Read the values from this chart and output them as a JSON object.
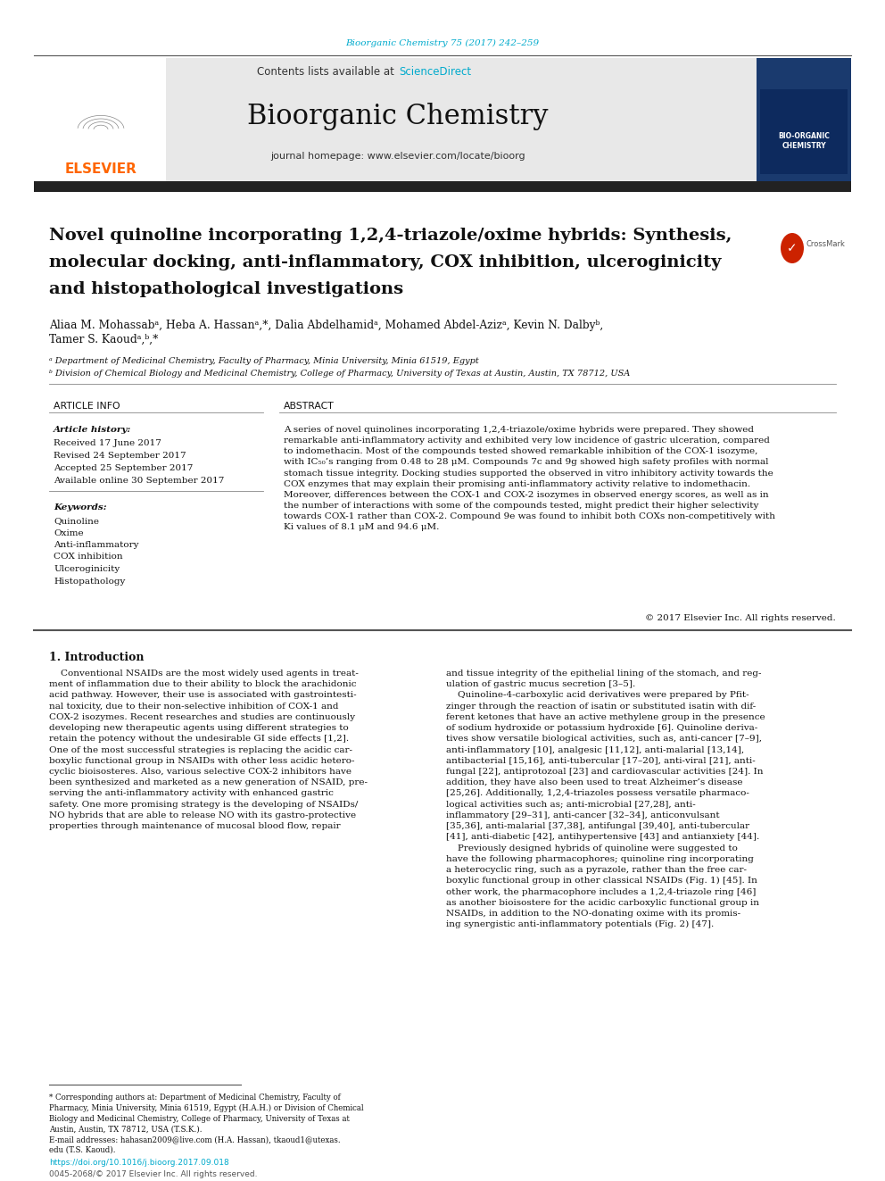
{
  "bg_color": "#ffffff",
  "journal_ref": "Bioorganic Chemistry 75 (2017) 242–259",
  "journal_ref_color": "#00aacc",
  "header_bg": "#e8e8e8",
  "header_text": "Contents lists available at",
  "sciencedirect_text": "ScienceDirect",
  "sciencedirect_color": "#00aacc",
  "journal_name": "Bioorganic Chemistry",
  "journal_homepage": "journal homepage: www.elsevier.com/locate/bioorg",
  "elsevier_color": "#ff6600",
  "elsevier_text": "ELSEVIER",
  "dark_bar_color": "#222222",
  "article_title_line1": "Novel quinoline incorporating 1,2,4-triazole/oxime hybrids: Synthesis,",
  "article_title_line2": "molecular docking, anti-inflammatory, COX inhibition, ulceroginicity",
  "article_title_line3": "and histopathological investigations",
  "authors_line1": "Aliaa M. Mohassabᵃ, Heba A. Hassanᵃ,*, Dalia Abdelhamidᵃ, Mohamed Abdel-Azizᵃ, Kevin N. Dalbyᵇ,",
  "authors_line2": "Tamer S. Kaoudᵃ,ᵇ,*",
  "affil_a": "ᵃ Department of Medicinal Chemistry, Faculty of Pharmacy, Minia University, Minia 61519, Egypt",
  "affil_b": "ᵇ Division of Chemical Biology and Medicinal Chemistry, College of Pharmacy, University of Texas at Austin, Austin, TX 78712, USA",
  "article_info_title": "ARTICLE INFO",
  "abstract_title": "ABSTRACT",
  "article_history_label": "Article history:",
  "received": "Received 17 June 2017",
  "revised": "Revised 24 September 2017",
  "accepted": "Accepted 25 September 2017",
  "available": "Available online 30 September 2017",
  "keywords_label": "Keywords:",
  "keywords": [
    "Quinoline",
    "Oxime",
    "Anti-inflammatory",
    "COX inhibition",
    "Ulceroginicity",
    "Histopathology"
  ],
  "abstract_text": "A series of novel quinolines incorporating 1,2,4-triazole/oxime hybrids were prepared. They showed\nremarkable anti-inflammatory activity and exhibited very low incidence of gastric ulceration, compared\nto indomethacin. Most of the compounds tested showed remarkable inhibition of the COX-1 isozyme,\nwith IC₅₀’s ranging from 0.48 to 28 μM. Compounds 7c and 9g showed high safety profiles with normal\nstomach tissue integrity. Docking studies supported the observed in vitro inhibitory activity towards the\nCOX enzymes that may explain their promising anti-inflammatory activity relative to indomethacin.\nMoreover, differences between the COX-1 and COX-2 isozymes in observed energy scores, as well as in\nthe number of interactions with some of the compounds tested, might predict their higher selectivity\ntowards COX-1 rather than COX-2. Compound 9e was found to inhibit both COXs non-competitively with\nKi values of 8.1 μM and 94.6 μM.",
  "copyright": "© 2017 Elsevier Inc. All rights reserved.",
  "intro_title": "1. Introduction",
  "intro_col1": "    Conventional NSAIDs are the most widely used agents in treat-\nment of inflammation due to their ability to block the arachidonic\nacid pathway. However, their use is associated with gastrointesti-\nnal toxicity, due to their non-selective inhibition of COX-1 and\nCOX-2 isozymes. Recent researches and studies are continuously\ndeveloping new therapeutic agents using different strategies to\nretain the potency without the undesirable GI side effects [1,2].\nOne of the most successful strategies is replacing the acidic car-\nboxylic functional group in NSAIDs with other less acidic hetero-\ncyclic bioisosteres. Also, various selective COX-2 inhibitors have\nbeen synthesized and marketed as a new generation of NSAID, pre-\nserving the anti-inflammatory activity with enhanced gastric\nsafety. One more promising strategy is the developing of NSAIDs/\nNO hybrids that are able to release NO with its gastro-protective\nproperties through maintenance of mucosal blood flow, repair",
  "intro_col2": "and tissue integrity of the epithelial lining of the stomach, and reg-\nulation of gastric mucus secretion [3–5].\n    Quinoline-4-carboxylic acid derivatives were prepared by Pfit-\nzinger through the reaction of isatin or substituted isatin with dif-\nferent ketones that have an active methylene group in the presence\nof sodium hydroxide or potassium hydroxide [6]. Quinoline deriva-\ntives show versatile biological activities, such as, anti-cancer [7–9],\nanti-inflammatory [10], analgesic [11,12], anti-malarial [13,14],\nantibacterial [15,16], anti-tubercular [17–20], anti-viral [21], anti-\nfungal [22], antiprotozoal [23] and cardiovascular activities [24]. In\naddition, they have also been used to treat Alzheimer’s disease\n[25,26]. Additionally, 1,2,4-triazoles possess versatile pharmaco-\nlogical activities such as; anti-microbial [27,28], anti-\ninflammatory [29–31], anti-cancer [32–34], anticonvulsant\n[35,36], anti-malarial [37,38], antifungal [39,40], anti-tubercular\n[41], anti-diabetic [42], antihypertensive [43] and antianxiety [44].\n    Previously designed hybrids of quinoline were suggested to\nhave the following pharmacophores; quinoline ring incorporating\na heterocyclic ring, such as a pyrazole, rather than the free car-\nboxylic functional group in other classical NSAIDs (Fig. 1) [45]. In\nother work, the pharmacophore includes a 1,2,4-triazole ring [46]\nas another bioisostere for the acidic carboxylic functional group in\nNSAIDs, in addition to the NO-donating oxime with its promis-\ning synergistic anti-inflammatory potentials (Fig. 2) [47].",
  "footnote_star": "* Corresponding authors at: Department of Medicinal Chemistry, Faculty of\nPharmacy, Minia University, Minia 61519, Egypt (H.A.H.) or Division of Chemical\nBiology and Medicinal Chemistry, College of Pharmacy, University of Texas at\nAustin, Austin, TX 78712, USA (T.S.K.).",
  "footnote_email": "E-mail addresses: hahasan2009@live.com (H.A. Hassan), tkaoud1@utexas.\nedu (T.S. Kaoud).",
  "doi_text": "https://doi.org/10.1016/j.bioorg.2017.09.018",
  "issn_text": "0045-2068/© 2017 Elsevier Inc. All rights reserved."
}
